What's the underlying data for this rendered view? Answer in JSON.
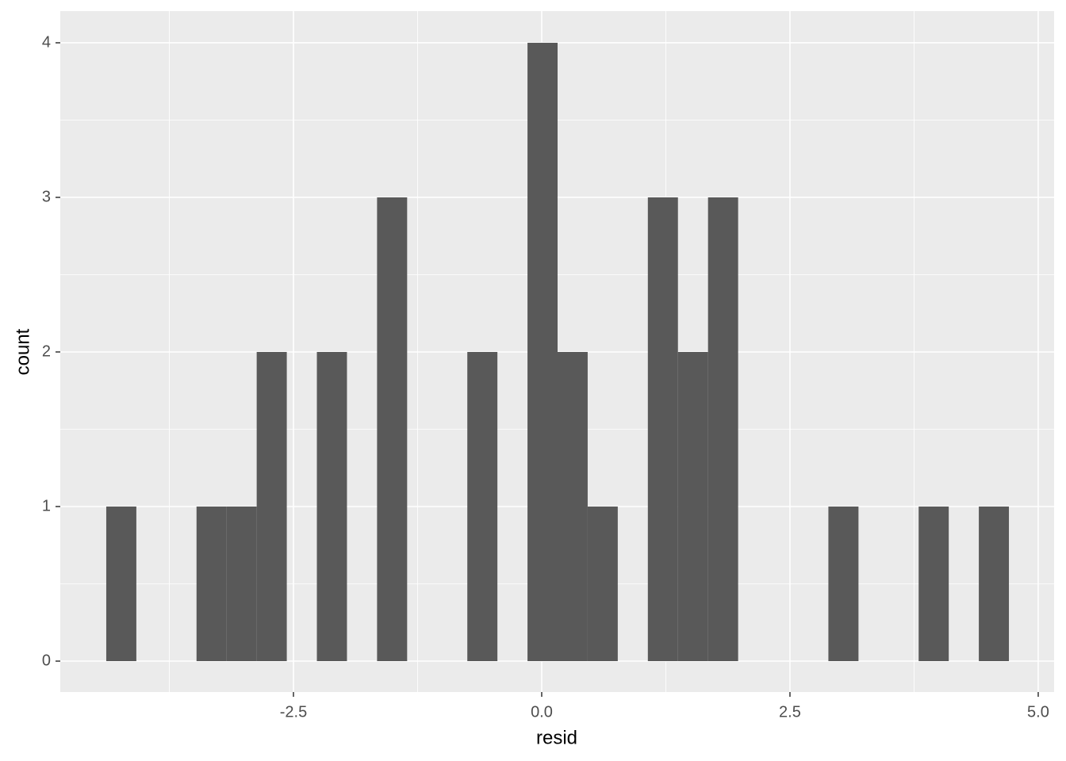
{
  "chart_data": {
    "type": "histogram",
    "x_label": "resid",
    "y_label": "count",
    "bins": [
      -4.385,
      -4.082,
      -3.779,
      -3.476,
      -3.173,
      -2.87,
      -2.567,
      -2.264,
      -1.961,
      -1.658,
      -1.355,
      -1.052,
      -0.749,
      -0.446,
      -0.143,
      0.16,
      0.463,
      0.766,
      1.069,
      1.372,
      1.675,
      1.978,
      2.281,
      2.584,
      2.887,
      3.19,
      3.493,
      3.796,
      4.099,
      4.402,
      4.705
    ],
    "counts": [
      1,
      0,
      0,
      1,
      1,
      2,
      0,
      2,
      0,
      3,
      0,
      0,
      2,
      0,
      4,
      2,
      1,
      0,
      3,
      2,
      3,
      0,
      0,
      0,
      1,
      0,
      0,
      1,
      0,
      1
    ],
    "color": "#595959",
    "xlim": [
      -4.848,
      5.16
    ],
    "ylim": [
      -0.2,
      4.205
    ],
    "xticks": [
      -2.5,
      {
        "value": 0,
        "label": "0.0"
      },
      2.5,
      {
        "value": 5,
        "label": "5.0"
      }
    ],
    "yticks": [
      0,
      1,
      2,
      3,
      4
    ],
    "x_minor_grid": [
      -3.75,
      -1.25,
      1.25,
      3.75
    ],
    "y_minor_grid": [
      0.5,
      1.5,
      2.5,
      3.5
    ],
    "panel_color": "#ebebeb",
    "grid": true
  }
}
